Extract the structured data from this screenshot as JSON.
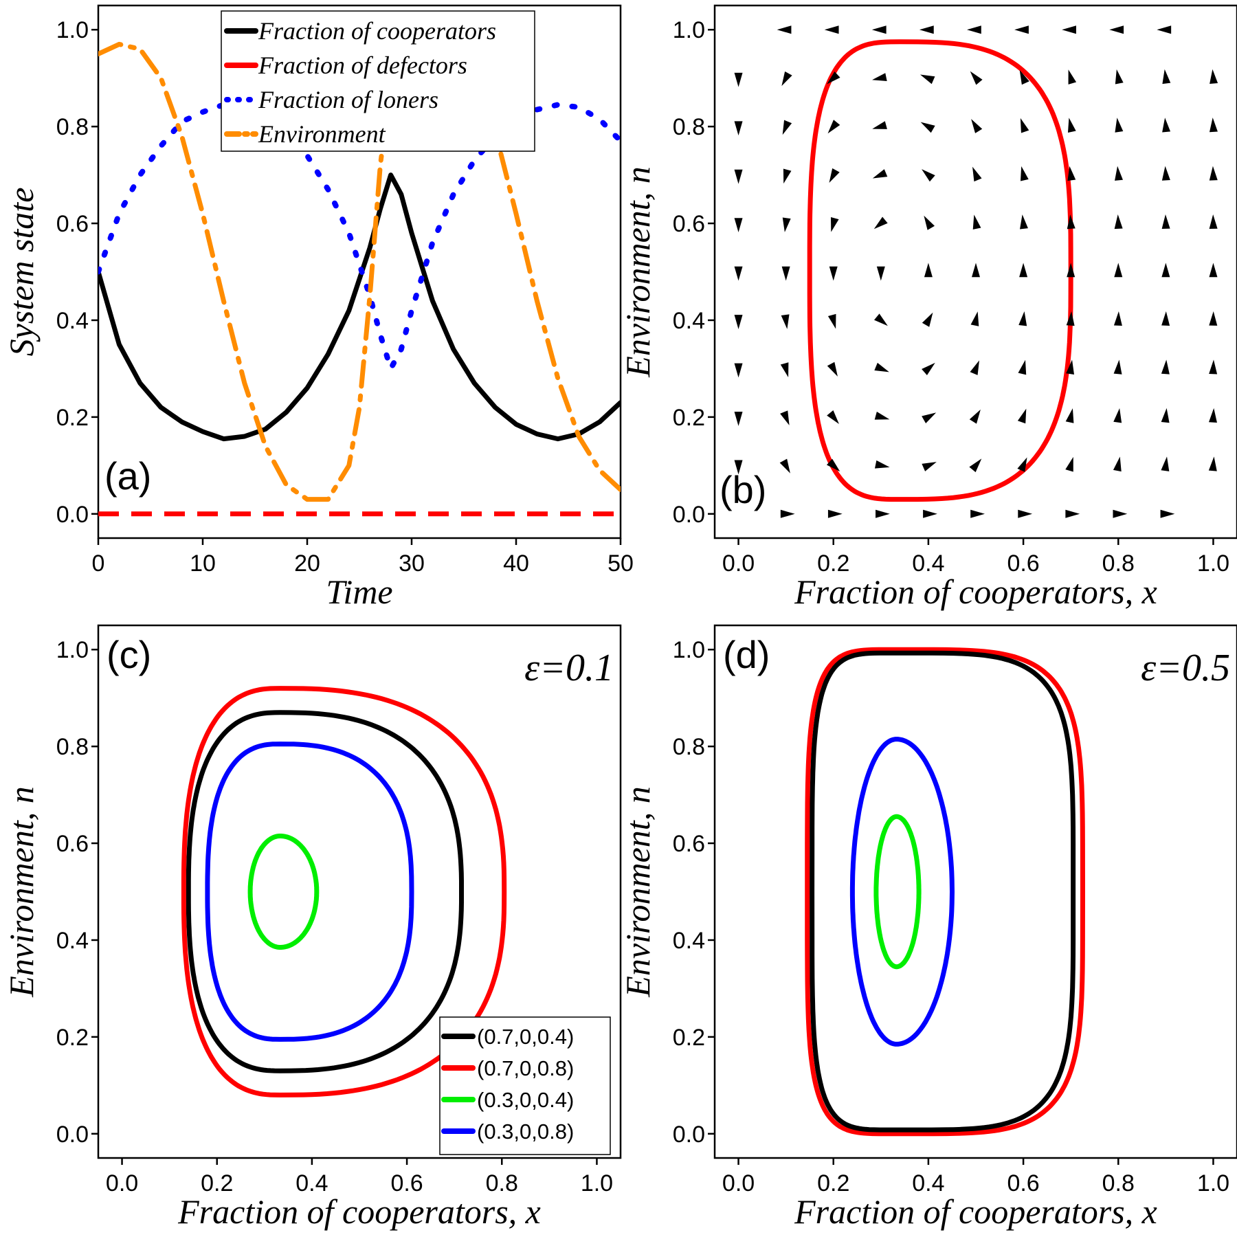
{
  "chart_data": [
    {
      "panel": "(a)",
      "type": "line",
      "xlabel": "Time",
      "ylabel": "System state",
      "xlim": [
        0,
        50
      ],
      "ylim": [
        -0.05,
        1.05
      ],
      "xticks": [
        "0",
        "10",
        "20",
        "30",
        "40",
        "50"
      ],
      "yticks": [
        "0.0",
        "0.2",
        "0.4",
        "0.6",
        "0.8",
        "1.0"
      ],
      "legend_placement": "top-center",
      "series": [
        {
          "name": "Fraction of cooperators",
          "color": "#000000",
          "style": "solid",
          "x": [
            0,
            2,
            4,
            6,
            8,
            10,
            12,
            14,
            16,
            18,
            20,
            22,
            24,
            26,
            27,
            28,
            29,
            30,
            32,
            34,
            36,
            38,
            40,
            42,
            44,
            46,
            48,
            50
          ],
          "y": [
            0.5,
            0.35,
            0.27,
            0.22,
            0.19,
            0.17,
            0.155,
            0.16,
            0.175,
            0.21,
            0.26,
            0.33,
            0.42,
            0.55,
            0.63,
            0.7,
            0.66,
            0.58,
            0.44,
            0.34,
            0.27,
            0.22,
            0.185,
            0.165,
            0.155,
            0.165,
            0.19,
            0.23
          ]
        },
        {
          "name": "Fraction of defectors",
          "color": "#ff0000",
          "style": "dashed",
          "x": [
            0,
            50
          ],
          "y": [
            0,
            0
          ]
        },
        {
          "name": "Fraction of loners",
          "color": "#0000ff",
          "style": "dotted",
          "x": [
            0,
            2,
            4,
            6,
            8,
            10,
            12,
            14,
            16,
            18,
            20,
            22,
            24,
            26,
            27,
            28,
            29,
            30,
            32,
            34,
            36,
            38,
            40,
            42,
            44,
            46,
            48,
            50
          ],
          "y": [
            0.5,
            0.62,
            0.7,
            0.76,
            0.81,
            0.83,
            0.845,
            0.84,
            0.82,
            0.79,
            0.74,
            0.67,
            0.58,
            0.45,
            0.37,
            0.3,
            0.34,
            0.42,
            0.56,
            0.66,
            0.73,
            0.78,
            0.815,
            0.835,
            0.845,
            0.84,
            0.815,
            0.77
          ]
        },
        {
          "name": "Environment",
          "color": "#ff8c00",
          "style": "dashdot",
          "x": [
            0,
            2,
            4,
            6,
            8,
            10,
            12,
            14,
            16,
            18,
            20,
            22,
            24,
            25,
            26,
            27,
            28,
            29,
            30,
            32,
            34,
            36,
            38,
            40,
            42,
            44,
            46,
            48,
            50
          ],
          "y": [
            0.95,
            0.97,
            0.96,
            0.9,
            0.78,
            0.62,
            0.44,
            0.27,
            0.14,
            0.06,
            0.03,
            0.03,
            0.1,
            0.22,
            0.45,
            0.72,
            0.9,
            0.98,
            1.0,
            0.99,
            0.97,
            0.91,
            0.79,
            0.62,
            0.44,
            0.28,
            0.16,
            0.09,
            0.05
          ]
        }
      ]
    },
    {
      "panel": "(b)",
      "type": "scatter",
      "description_kind": "vector field with one closed orbit",
      "xlabel": "Fraction of cooperators, x",
      "ylabel": "Environment, n",
      "xlim": [
        -0.05,
        1.05
      ],
      "ylim": [
        -0.05,
        1.05
      ],
      "xticks": [
        "0.0",
        "0.2",
        "0.4",
        "0.6",
        "0.8",
        "1.0"
      ],
      "yticks": [
        "0.0",
        "0.2",
        "0.4",
        "0.6",
        "0.8",
        "1.0"
      ],
      "orbit": {
        "color": "#ff0000",
        "xmin": 0.15,
        "xmax": 0.7,
        "nmin": 0.03,
        "nmax": 0.975,
        "xpeak": 0.34
      },
      "arrow_color": "#000000"
    },
    {
      "panel": "(c)",
      "type": "line",
      "annotation": "ε=0.1",
      "xlabel": "Fraction of cooperators, x",
      "ylabel": "Environment, n",
      "xlim": [
        -0.05,
        1.05
      ],
      "ylim": [
        -0.05,
        1.05
      ],
      "xticks": [
        "0.0",
        "0.2",
        "0.4",
        "0.6",
        "0.8",
        "1.0"
      ],
      "yticks": [
        "0.0",
        "0.2",
        "0.4",
        "0.6",
        "0.8",
        "1.0"
      ],
      "legend_placement": "bottom-right",
      "series": [
        {
          "name": "(0.7,0,0.4)",
          "color": "#000000",
          "xmin": 0.14,
          "xmax": 0.715,
          "nmin": 0.13,
          "nmax": 0.87,
          "xpeak": 0.333
        },
        {
          "name": "(0.7,0,0.8)",
          "color": "#ff0000",
          "xmin": 0.13,
          "xmax": 0.805,
          "nmin": 0.08,
          "nmax": 0.92,
          "xpeak": 0.333
        },
        {
          "name": "(0.3,0,0.4)",
          "color": "#00ee00",
          "xmin": 0.27,
          "xmax": 0.41,
          "nmin": 0.385,
          "nmax": 0.615,
          "xpeak": 0.333
        },
        {
          "name": "(0.3,0,0.8)",
          "color": "#0000ff",
          "xmin": 0.18,
          "xmax": 0.61,
          "nmin": 0.195,
          "nmax": 0.805,
          "xpeak": 0.333
        }
      ]
    },
    {
      "panel": "(d)",
      "type": "line",
      "annotation": "ε=0.5",
      "xlabel": "Fraction of cooperators, x",
      "ylabel": "Environment, n",
      "xlim": [
        -0.05,
        1.05
      ],
      "ylim": [
        -0.05,
        1.05
      ],
      "xticks": [
        "0.0",
        "0.2",
        "0.4",
        "0.6",
        "0.8",
        "1.0"
      ],
      "yticks": [
        "0.0",
        "0.2",
        "0.4",
        "0.6",
        "0.8",
        "1.0"
      ],
      "series": [
        {
          "name": "(0.7,0,0.8)",
          "color": "#ff0000",
          "xmin": 0.145,
          "xmax": 0.725,
          "nmin": 0.0,
          "nmax": 1.0,
          "xpeak": 0.333
        },
        {
          "name": "(0.7,0,0.4)",
          "color": "#000000",
          "xmin": 0.155,
          "xmax": 0.705,
          "nmin": 0.008,
          "nmax": 0.993,
          "xpeak": 0.333
        },
        {
          "name": "(0.3,0,0.8)",
          "color": "#0000ff",
          "xmin": 0.24,
          "xmax": 0.45,
          "nmin": 0.185,
          "nmax": 0.815,
          "xpeak": 0.333
        },
        {
          "name": "(0.3,0,0.4)",
          "color": "#00ee00",
          "xmin": 0.29,
          "xmax": 0.38,
          "nmin": 0.345,
          "nmax": 0.655,
          "xpeak": 0.333
        }
      ]
    }
  ],
  "labels": {
    "a": "(a)",
    "b": "(b)",
    "c": "(c)",
    "d": "(d)",
    "eps_c": "ε=0.1",
    "eps_d": "ε=0.5",
    "time": "Time",
    "system_state": "System state",
    "x_coop": "Fraction of cooperators, x",
    "env_n": "Environment, n"
  }
}
